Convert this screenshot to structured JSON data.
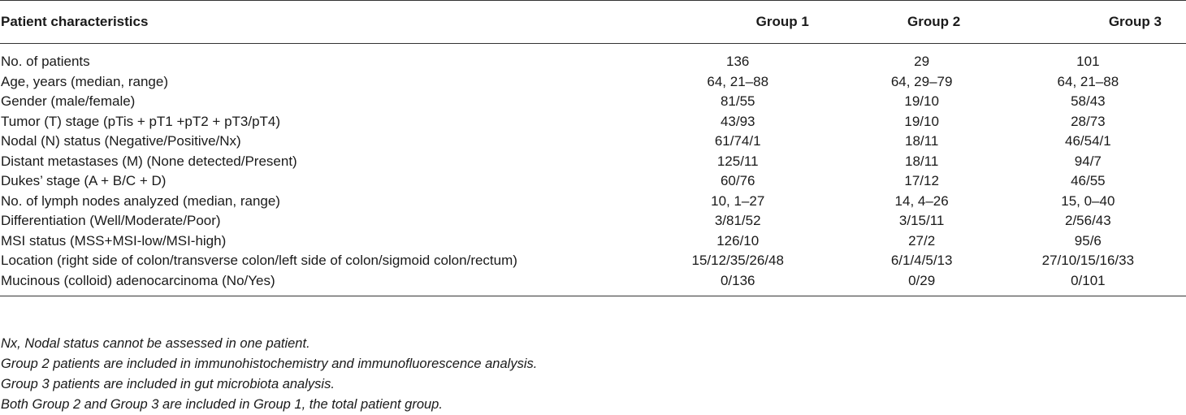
{
  "table": {
    "headers": [
      "Patient characteristics",
      "Group 1",
      "Group 2",
      "Group 3"
    ],
    "rows": [
      [
        "No. of patients",
        "136",
        "29",
        "101"
      ],
      [
        "Age, years (median, range)",
        "64, 21–88",
        "64, 29–79",
        "64, 21–88"
      ],
      [
        "Gender (male/female)",
        "81/55",
        "19/10",
        "58/43"
      ],
      [
        "Tumor (T) stage (pTis + pT1 +pT2 + pT3/pT4)",
        "43/93",
        "19/10",
        "28/73"
      ],
      [
        "Nodal (N) status (Negative/Positive/Nx)",
        "61/74/1",
        "18/11",
        "46/54/1"
      ],
      [
        "Distant metastases (M) (None detected/Present)",
        "125/11",
        "18/11",
        "94/7"
      ],
      [
        "Dukes’ stage (A + B/C + D)",
        "60/76",
        "17/12",
        "46/55"
      ],
      [
        "No. of lymph nodes analyzed (median, range)",
        "10, 1–27",
        "14, 4–26",
        "15, 0–40"
      ],
      [
        "Differentiation (Well/Moderate/Poor)",
        "3/81/52",
        "3/15/11",
        "2/56/43"
      ],
      [
        "MSI status (MSS+MSI-low/MSI-high)",
        "126/10",
        "27/2",
        "95/6"
      ],
      [
        "Location (right side of colon/transverse colon/left side of colon/sigmoid colon/rectum)",
        "15/12/35/26/48",
        "6/1/4/5/13",
        "27/10/15/16/33"
      ],
      [
        "Mucinous (colloid) adenocarcinoma (No/Yes)",
        "0/136",
        "0/29",
        "0/101"
      ]
    ]
  },
  "footnotes": [
    "Nx, Nodal status cannot be assessed in one patient.",
    "Group 2 patients are included in immunohistochemistry and immunofluorescence analysis.",
    "Group 3 patients are included in gut microbiota analysis.",
    "Both Group 2 and Group 3 are included in Group 1, the total patient group."
  ]
}
